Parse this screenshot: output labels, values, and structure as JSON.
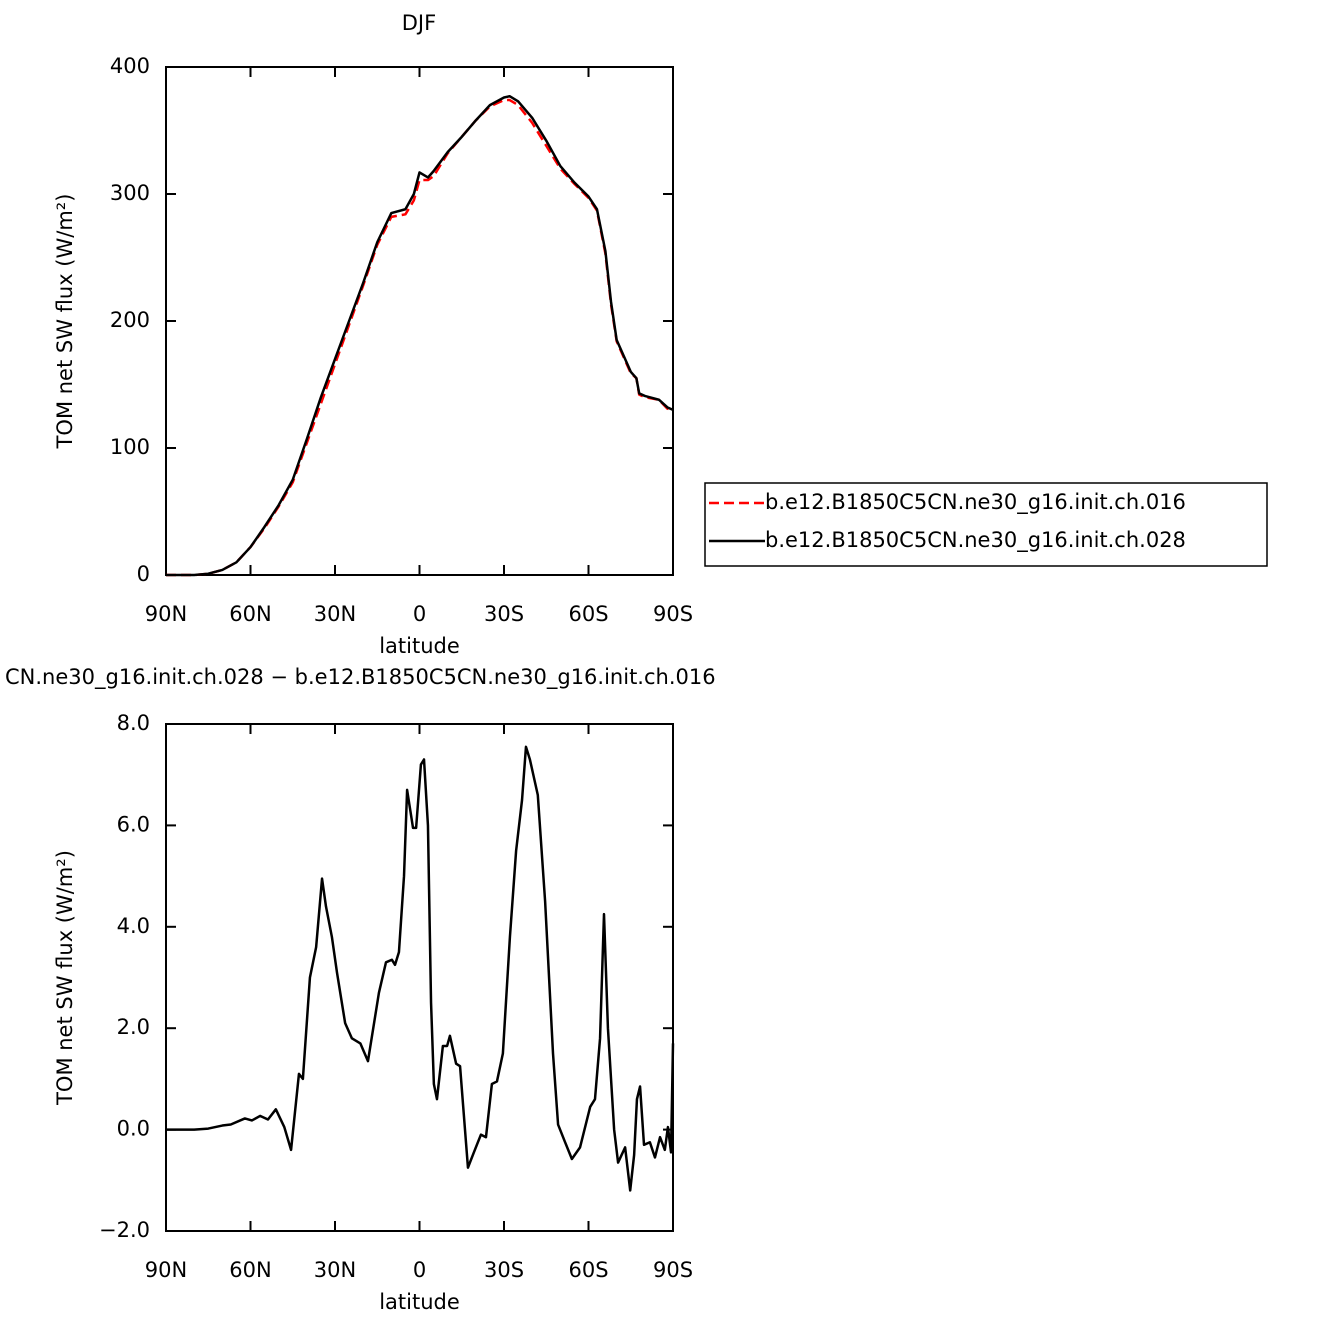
{
  "chart_data": [
    {
      "type": "line",
      "title": "DJF",
      "xlabel": "latitude",
      "ylabel": "TOM net SW flux (W/m²)",
      "x": [
        90,
        85,
        80,
        75,
        70,
        65,
        60,
        55,
        50,
        45,
        40,
        35,
        30,
        25,
        20,
        15,
        10,
        5,
        2,
        0,
        -3,
        -5,
        -10,
        -15,
        -20,
        -25,
        -30,
        -32,
        -35,
        -40,
        -45,
        -50,
        -55,
        -60,
        -63,
        -66,
        -68,
        -70,
        -75,
        -77,
        -78,
        -80,
        -85,
        -88,
        -90
      ],
      "xlim": [
        90,
        -90
      ],
      "xticks": [
        {
          "value": 90,
          "label": "90N"
        },
        {
          "value": 60,
          "label": "60N"
        },
        {
          "value": 30,
          "label": "30N"
        },
        0,
        {
          "value": -30,
          "label": "30S"
        },
        {
          "value": -60,
          "label": "60S"
        },
        {
          "value": -90,
          "label": "90S"
        }
      ],
      "ylim": [
        0,
        400
      ],
      "yticks": [
        0,
        100,
        200,
        300,
        400
      ],
      "legend": "right",
      "series": [
        {
          "name": "b.e12.B1850C5CN.ne30_g16.init.ch.016",
          "color": "#ff0000",
          "dashed": true,
          "values": [
            0,
            0,
            0,
            1,
            4,
            10,
            22,
            37,
            54,
            73,
            104,
            135,
            166,
            197,
            228,
            260,
            282,
            284,
            295,
            311,
            311,
            314,
            332,
            345,
            358,
            369,
            374,
            374,
            370,
            356,
            338,
            320,
            308,
            297,
            287,
            253,
            213,
            184,
            159,
            155,
            142,
            140,
            138,
            131,
            130
          ]
        },
        {
          "name": "b.e12.B1850C5CN.ne30_g16.init.ch.028",
          "color": "#000000",
          "dashed": false,
          "values": [
            0,
            0,
            0,
            1,
            4,
            10,
            22,
            38,
            55,
            75,
            107,
            140,
            170,
            200,
            230,
            262,
            285,
            288,
            300,
            317,
            313,
            318,
            333,
            345,
            358,
            370,
            376,
            377,
            373,
            360,
            342,
            322,
            309,
            298,
            288,
            255,
            215,
            185,
            160,
            155,
            143,
            141,
            138,
            132,
            130
          ]
        }
      ]
    },
    {
      "type": "line",
      "title": "CN.ne30_g16.init.ch.028 − b.e12.B1850C5CN.ne30_g16.init.ch.016",
      "xlabel": "latitude",
      "ylabel": "TOM net SW flux (W/m²)",
      "x": [
        90,
        80,
        75,
        70,
        67,
        62,
        59.5,
        56.6,
        53.8,
        51,
        48,
        45.6,
        42.8,
        41.4,
        38.9,
        36.7,
        34.6,
        33.2,
        31.1,
        29.3,
        26.4,
        24,
        21,
        18.3,
        14.4,
        11.9,
        9.8,
        8.7,
        7.3,
        5.5,
        4.4,
        2.3,
        1.2,
        -0.5,
        -1.6,
        -3,
        -4.1,
        -5.1,
        -6.2,
        -8.3,
        -9.8,
        -10.8,
        -13,
        -14.4,
        -17.2,
        -19.3,
        -21.8,
        -23.6,
        -25.7,
        -27.5,
        -29.6,
        -32.1,
        -34.3,
        -36.4,
        -37.8,
        -39.2,
        -42,
        -44.6,
        -47.4,
        -49.2,
        -51.7,
        -54.1,
        -57,
        -60.6,
        -62.3,
        -64.1,
        -65.5,
        -66.9,
        -69.1,
        -70.5,
        -73,
        -74.8,
        -76.2,
        -77.2,
        -78.3,
        -79.7,
        -81.8,
        -83.6,
        -85.4,
        -87.1,
        -88.2,
        -89.3,
        -90
      ],
      "values": [
        0,
        0,
        0.02,
        0.08,
        0.1,
        0.22,
        0.18,
        0.27,
        0.2,
        0.4,
        0.05,
        -0.4,
        1.1,
        1.0,
        3.0,
        3.6,
        4.95,
        4.4,
        3.8,
        3.1,
        2.1,
        1.8,
        1.7,
        1.35,
        2.7,
        3.3,
        3.35,
        3.25,
        3.5,
        5.0,
        6.7,
        5.95,
        5.95,
        7.2,
        7.3,
        6.0,
        2.5,
        0.9,
        0.6,
        1.65,
        1.65,
        1.85,
        1.3,
        1.25,
        -0.75,
        -0.45,
        -0.1,
        -0.15,
        0.9,
        0.95,
        1.5,
        3.8,
        5.5,
        6.5,
        7.55,
        7.3,
        6.6,
        4.5,
        1.5,
        0.1,
        -0.25,
        -0.58,
        -0.35,
        0.45,
        0.6,
        1.8,
        4.25,
        2.0,
        0.0,
        -0.65,
        -0.35,
        -1.2,
        -0.5,
        0.6,
        0.85,
        -0.3,
        -0.25,
        -0.55,
        -0.15,
        -0.4,
        0.05,
        -0.45,
        1.7
      ],
      "color": "#000000",
      "xlim": [
        90,
        -90
      ],
      "xticks": [
        {
          "value": 90,
          "label": "90N"
        },
        {
          "value": 60,
          "label": "60N"
        },
        {
          "value": 30,
          "label": "30N"
        },
        0,
        {
          "value": -30,
          "label": "30S"
        },
        {
          "value": -60,
          "label": "60S"
        },
        {
          "value": -90,
          "label": "90S"
        }
      ],
      "ylim": [
        -2,
        8
      ],
      "yticks": [
        {
          "value": -2,
          "label": "−2.0"
        },
        {
          "value": 0,
          "label": "0.0"
        },
        {
          "value": 2,
          "label": "2.0"
        },
        {
          "value": 4,
          "label": "4.0"
        },
        {
          "value": 6,
          "label": "6.0"
        },
        {
          "value": 8,
          "label": "8.0"
        }
      ]
    }
  ]
}
